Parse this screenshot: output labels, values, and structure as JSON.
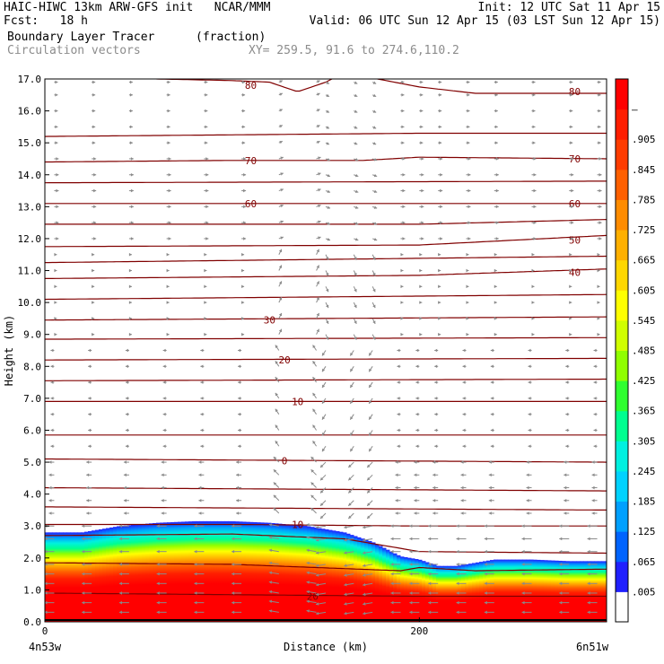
{
  "header": {
    "model_line": "HAIC-HIWC 13km ARW-GFS init   NCAR/MMM",
    "init_line": "Init: 12 UTC Sat 11 Apr 15",
    "fcst_line": "Fcst:   18 h",
    "valid_line": "Valid: 06 UTC Sun 12 Apr 15 (03 LST Sun 12 Apr 15)",
    "field_name": "Boundary Layer Tracer",
    "field_units": "(fraction)",
    "vector_name": "Circulation vectors",
    "xy_range": "XY= 259.5, 91.6 to 274.6,110.2"
  },
  "chart_data": {
    "type": "heatmap",
    "xlabel": "Distance (km)",
    "ylabel": "Height (km)",
    "xlim": [
      0,
      300
    ],
    "ylim": [
      0,
      17
    ],
    "x_ticks": [
      0,
      200
    ],
    "x_tick_labels": [
      "0",
      "200"
    ],
    "x_end_labels": {
      "left": "4n53w",
      "right": "6n51w"
    },
    "y_ticks": [
      0,
      1,
      2,
      3,
      4,
      5,
      6,
      7,
      8,
      9,
      10,
      11,
      12,
      13,
      14,
      15,
      16,
      17
    ],
    "y_tick_labels": [
      "0.0",
      "1.0",
      "2.0",
      "3.0",
      "4.0",
      "5.0",
      "6.0",
      "7.0",
      "8.0",
      "9.0",
      "10.0",
      "11.0",
      "12.0",
      "13.0",
      "14.0",
      "15.0",
      "16.0",
      "17.0"
    ],
    "colorbar": {
      "labels": [
        ".005",
        ".065",
        ".125",
        ".185",
        ".245",
        ".305",
        ".365",
        ".425",
        ".485",
        ".545",
        ".605",
        ".665",
        ".725",
        ".785",
        ".845",
        ".905",
        "1"
      ],
      "colors": [
        "#ffffff",
        "#2020ff",
        "#0064ff",
        "#00a0ff",
        "#00d2ff",
        "#00f0e0",
        "#00ff90",
        "#30ff30",
        "#90ff00",
        "#d0ff00",
        "#ffff00",
        "#ffd700",
        "#ffb000",
        "#ff8c00",
        "#ff6000",
        "#ff3c00",
        "#ff1e00",
        "#ff0000"
      ]
    },
    "tracer_layer": {
      "top_profile_x": [
        0,
        20,
        40,
        60,
        80,
        100,
        120,
        140,
        160,
        175,
        190,
        200,
        210,
        220,
        240,
        260,
        280,
        300
      ],
      "top_profile_z": [
        2.8,
        2.8,
        3.0,
        3.1,
        3.15,
        3.15,
        3.1,
        3.0,
        2.8,
        2.5,
        2.05,
        1.95,
        1.75,
        1.75,
        1.95,
        1.95,
        1.9,
        1.9
      ]
    },
    "contours": [
      {
        "label": "80",
        "x": [
          0,
          20,
          60,
          100,
          120,
          135,
          150,
          160,
          200,
          230,
          260,
          300
        ],
        "z": [
          17.2,
          17.2,
          17.0,
          16.95,
          16.9,
          16.6,
          16.9,
          17.2,
          16.75,
          16.55,
          16.55,
          16.55
        ],
        "label_x": [
          110,
          283
        ],
        "label_z": [
          16.8,
          16.6
        ]
      },
      {
        "label": "",
        "x": [
          0,
          100,
          200,
          300
        ],
        "z": [
          15.2,
          15.25,
          15.3,
          15.3
        ]
      },
      {
        "label": "70",
        "x": [
          0,
          100,
          170,
          200,
          300
        ],
        "z": [
          14.4,
          14.45,
          14.45,
          14.55,
          14.5
        ],
        "label_x": [
          110,
          283
        ],
        "label_z": [
          14.45,
          14.5
        ]
      },
      {
        "label": "",
        "x": [
          0,
          300
        ],
        "z": [
          13.75,
          13.8
        ]
      },
      {
        "label": "60",
        "x": [
          0,
          100,
          300
        ],
        "z": [
          13.1,
          13.1,
          13.1
        ],
        "label_x": [
          110,
          283
        ],
        "label_z": [
          13.1,
          13.1
        ]
      },
      {
        "label": "",
        "x": [
          0,
          200,
          300
        ],
        "z": [
          12.45,
          12.45,
          12.6
        ]
      },
      {
        "label": "50",
        "x": [
          0,
          200,
          300
        ],
        "z": [
          11.75,
          11.8,
          12.1
        ],
        "label_x": [
          283
        ],
        "label_z": [
          11.95
        ]
      },
      {
        "label": "",
        "x": [
          0,
          300
        ],
        "z": [
          11.25,
          11.45
        ]
      },
      {
        "label": "40",
        "x": [
          0,
          200,
          300
        ],
        "z": [
          10.75,
          10.85,
          11.05
        ],
        "label_x": [
          283
        ],
        "label_z": [
          10.95
        ]
      },
      {
        "label": "",
        "x": [
          0,
          300
        ],
        "z": [
          10.1,
          10.25
        ]
      },
      {
        "label": "30",
        "x": [
          0,
          300
        ],
        "z": [
          9.45,
          9.55
        ],
        "label_x": [
          120
        ],
        "label_z": [
          9.45
        ]
      },
      {
        "label": "",
        "x": [
          0,
          300
        ],
        "z": [
          8.85,
          8.9
        ]
      },
      {
        "label": "20",
        "x": [
          0,
          300
        ],
        "z": [
          8.2,
          8.25
        ],
        "label_x": [
          128
        ],
        "label_z": [
          8.2
        ]
      },
      {
        "label": "",
        "x": [
          0,
          300
        ],
        "z": [
          7.55,
          7.6
        ]
      },
      {
        "label": "10",
        "x": [
          0,
          300
        ],
        "z": [
          6.9,
          6.9
        ],
        "label_x": [
          135
        ],
        "label_z": [
          6.9
        ]
      },
      {
        "label": "",
        "x": [
          0,
          300
        ],
        "z": [
          5.85,
          5.85
        ]
      },
      {
        "label": "0",
        "x": [
          0,
          300
        ],
        "z": [
          5.1,
          5.0
        ],
        "label_x": [
          128
        ],
        "label_z": [
          5.05
        ]
      },
      {
        "label": "",
        "x": [
          0,
          300
        ],
        "z": [
          4.2,
          4.1
        ]
      },
      {
        "label": "",
        "x": [
          0,
          300
        ],
        "z": [
          3.6,
          3.5
        ]
      },
      {
        "label": "10",
        "x": [
          0,
          100,
          200,
          300
        ],
        "z": [
          3.05,
          3.05,
          3.0,
          3.0
        ],
        "label_x": [
          135
        ],
        "label_z": [
          3.05
        ]
      },
      {
        "label": "",
        "x": [
          0,
          100,
          160,
          200,
          300
        ],
        "z": [
          2.7,
          2.75,
          2.6,
          2.2,
          2.15
        ]
      },
      {
        "label": "",
        "x": [
          0,
          100,
          190,
          200,
          230,
          300
        ],
        "z": [
          1.85,
          1.8,
          1.6,
          1.7,
          1.6,
          1.65
        ]
      },
      {
        "label": "20",
        "x": [
          0,
          100,
          200,
          300
        ],
        "z": [
          0.9,
          0.85,
          0.8,
          0.8
        ],
        "label_x": [
          143
        ],
        "label_z": [
          0.8
        ]
      }
    ],
    "wind_vectors": {
      "x_columns": [
        5,
        25,
        45,
        65,
        85,
        105,
        125,
        145,
        150,
        165,
        175,
        190,
        200,
        210,
        225,
        240,
        260,
        280,
        295
      ],
      "z_rows": [
        0.3,
        0.6,
        0.9,
        1.2,
        1.5,
        1.8,
        2.2,
        2.6,
        3.0,
        3.4,
        3.8,
        4.2,
        4.6,
        5.0,
        5.5,
        6.0,
        6.5,
        7.0,
        7.5,
        8.0,
        8.5,
        9.0,
        9.5,
        10.0,
        10.5,
        11.0,
        11.5,
        12.0,
        12.5,
        13.0,
        13.5,
        14.0,
        14.5,
        15.0,
        15.5,
        16.0,
        16.5,
        16.9
      ]
    }
  }
}
